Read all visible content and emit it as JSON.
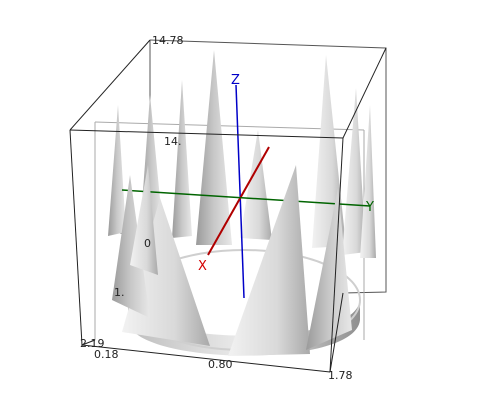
{
  "scene": {
    "axes": {
      "x": {
        "label": "X",
        "color": "#d40000"
      },
      "y": {
        "label": "Y",
        "color": "#006400"
      },
      "z": {
        "label": "Z",
        "color": "#0000c8"
      }
    },
    "tick_labels": {
      "z_top": "14.78",
      "z_mid": "14.",
      "inner_zero": "0",
      "left_one": "1.",
      "x_min_a": "2.19",
      "x_min_b": "0.18",
      "x_mid": "0.80",
      "x_max": "1.78"
    }
  }
}
